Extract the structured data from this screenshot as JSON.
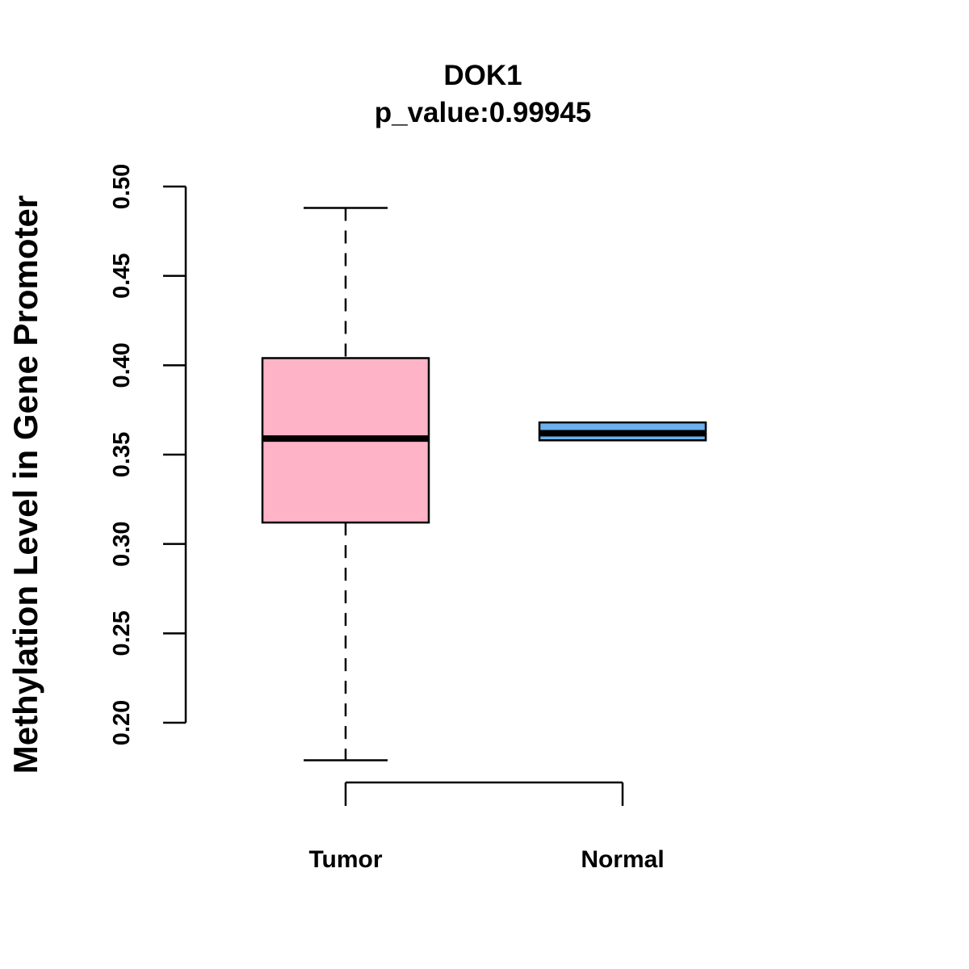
{
  "chart_data": {
    "type": "boxplot",
    "title": "DOK1",
    "subtitle": "p_value:0.99945",
    "xlabel": "",
    "ylabel": "Methylation Level in Gene Promoter",
    "ylim": [
      0.2,
      0.5
    ],
    "yticks": [
      0.2,
      0.25,
      0.3,
      0.35,
      0.4,
      0.45,
      0.5
    ],
    "ytick_labels": [
      "0.20",
      "0.25",
      "0.30",
      "0.35",
      "0.40",
      "0.45",
      "0.50"
    ],
    "grid": false,
    "legend": "none",
    "categories": [
      "Tumor",
      "Normal"
    ],
    "boxes": [
      {
        "category": "Tumor",
        "min": 0.179,
        "q1": 0.312,
        "median": 0.359,
        "q3": 0.404,
        "max": 0.488,
        "color": "#FFB3C6"
      },
      {
        "category": "Normal",
        "min": 0.358,
        "q1": 0.358,
        "median": 0.362,
        "q3": 0.368,
        "max": 0.368,
        "color": "#6CB0EC"
      }
    ]
  }
}
